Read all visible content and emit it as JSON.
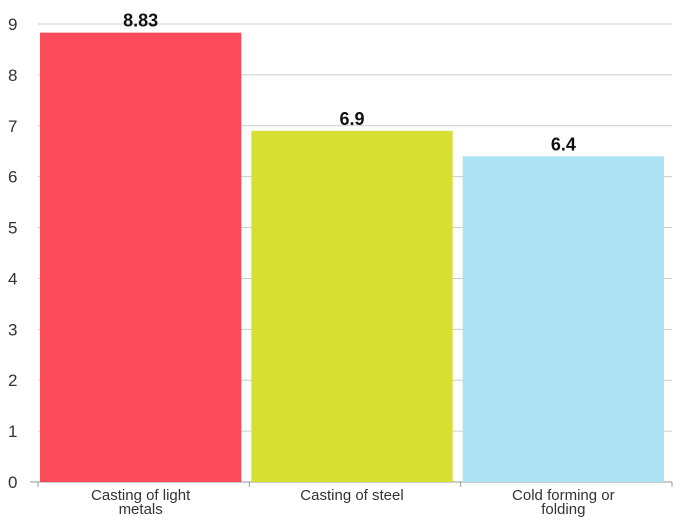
{
  "chart_data": {
    "type": "bar",
    "categories": [
      [
        "Casting of light",
        "metals"
      ],
      [
        "Casting of steel"
      ],
      [
        "Cold forming or",
        "folding"
      ]
    ],
    "values": [
      8.83,
      6.9,
      6.4
    ],
    "data_labels": [
      "8.83",
      "6.9",
      "6.4"
    ],
    "colors": [
      "#fc4b5a",
      "#d6df32",
      "#ade1f4"
    ],
    "ylim": [
      0,
      9
    ],
    "yticks": [
      "0",
      "1",
      "2",
      "3",
      "4",
      "5",
      "6",
      "7",
      "8",
      "9"
    ],
    "grid": true,
    "legend": "none"
  }
}
